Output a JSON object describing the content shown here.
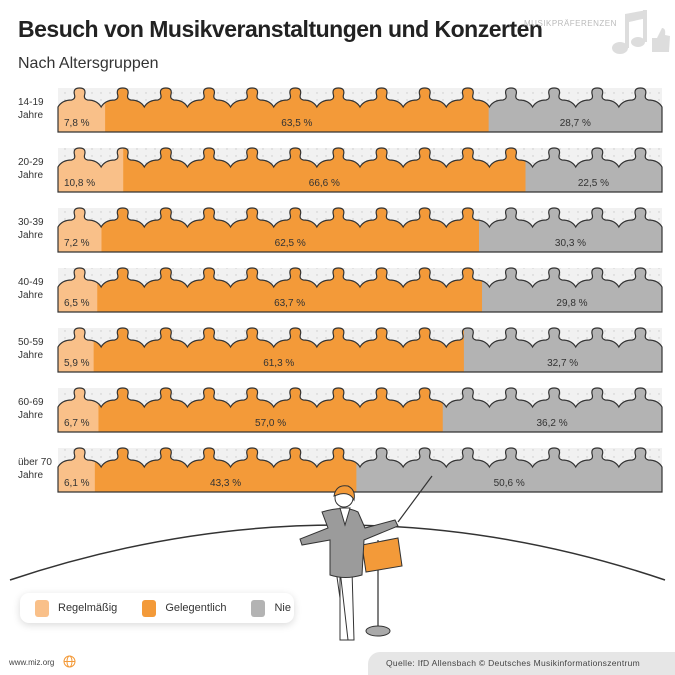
{
  "header": {
    "title": "Besuch von Musikveranstaltungen und Konzerten",
    "subtitle": "Nach Altersgruppen",
    "brand": "MUSIKPRÄFERENZEN",
    "brand_icon": "music-note-thumbs-up-icon"
  },
  "chart_data": {
    "type": "bar",
    "orientation": "horizontal-stacked-100",
    "categories": [
      "14-19 Jahre",
      "20-29 Jahre",
      "30-39 Jahre",
      "40-49 Jahre",
      "50-59 Jahre",
      "60-69 Jahre",
      "über 70 Jahre"
    ],
    "category_lines": [
      [
        "14-19",
        "Jahre"
      ],
      [
        "20-29",
        "Jahre"
      ],
      [
        "30-39",
        "Jahre"
      ],
      [
        "40-49",
        "Jahre"
      ],
      [
        "50-59",
        "Jahre"
      ],
      [
        "60-69",
        "Jahre"
      ],
      [
        "über 70",
        "Jahre"
      ]
    ],
    "series": [
      {
        "name": "Regelmäßig",
        "color": "#f9c089",
        "values": [
          7.8,
          10.8,
          7.2,
          6.5,
          5.9,
          6.7,
          6.1
        ],
        "labels": [
          "7,8 %",
          "10,8 %",
          "7,2 %",
          "6,5 %",
          "5,9 %",
          "6,7 %",
          "6,1 %"
        ]
      },
      {
        "name": "Gelegentlich",
        "color": "#f39a39",
        "values": [
          63.5,
          66.6,
          62.5,
          63.7,
          61.3,
          57.0,
          43.3
        ],
        "labels": [
          "63,5 %",
          "66,6 %",
          "62,5 %",
          "63,7 %",
          "61,3 %",
          "57,0 %",
          "43,3 %"
        ]
      },
      {
        "name": "Nie",
        "color": "#b3b3b3",
        "values": [
          28.7,
          22.5,
          30.3,
          29.8,
          32.7,
          36.2,
          50.6
        ],
        "labels": [
          "28,7 %",
          "22,5 %",
          "30,3 %",
          "29,8 %",
          "32,7 %",
          "36,2 %",
          "50,6 %"
        ]
      }
    ],
    "legend": "bottom-left"
  },
  "footer": {
    "url": "www.miz.org",
    "source": "Quelle: IfD Allensbach © Deutsches Musikinformationszentrum"
  }
}
